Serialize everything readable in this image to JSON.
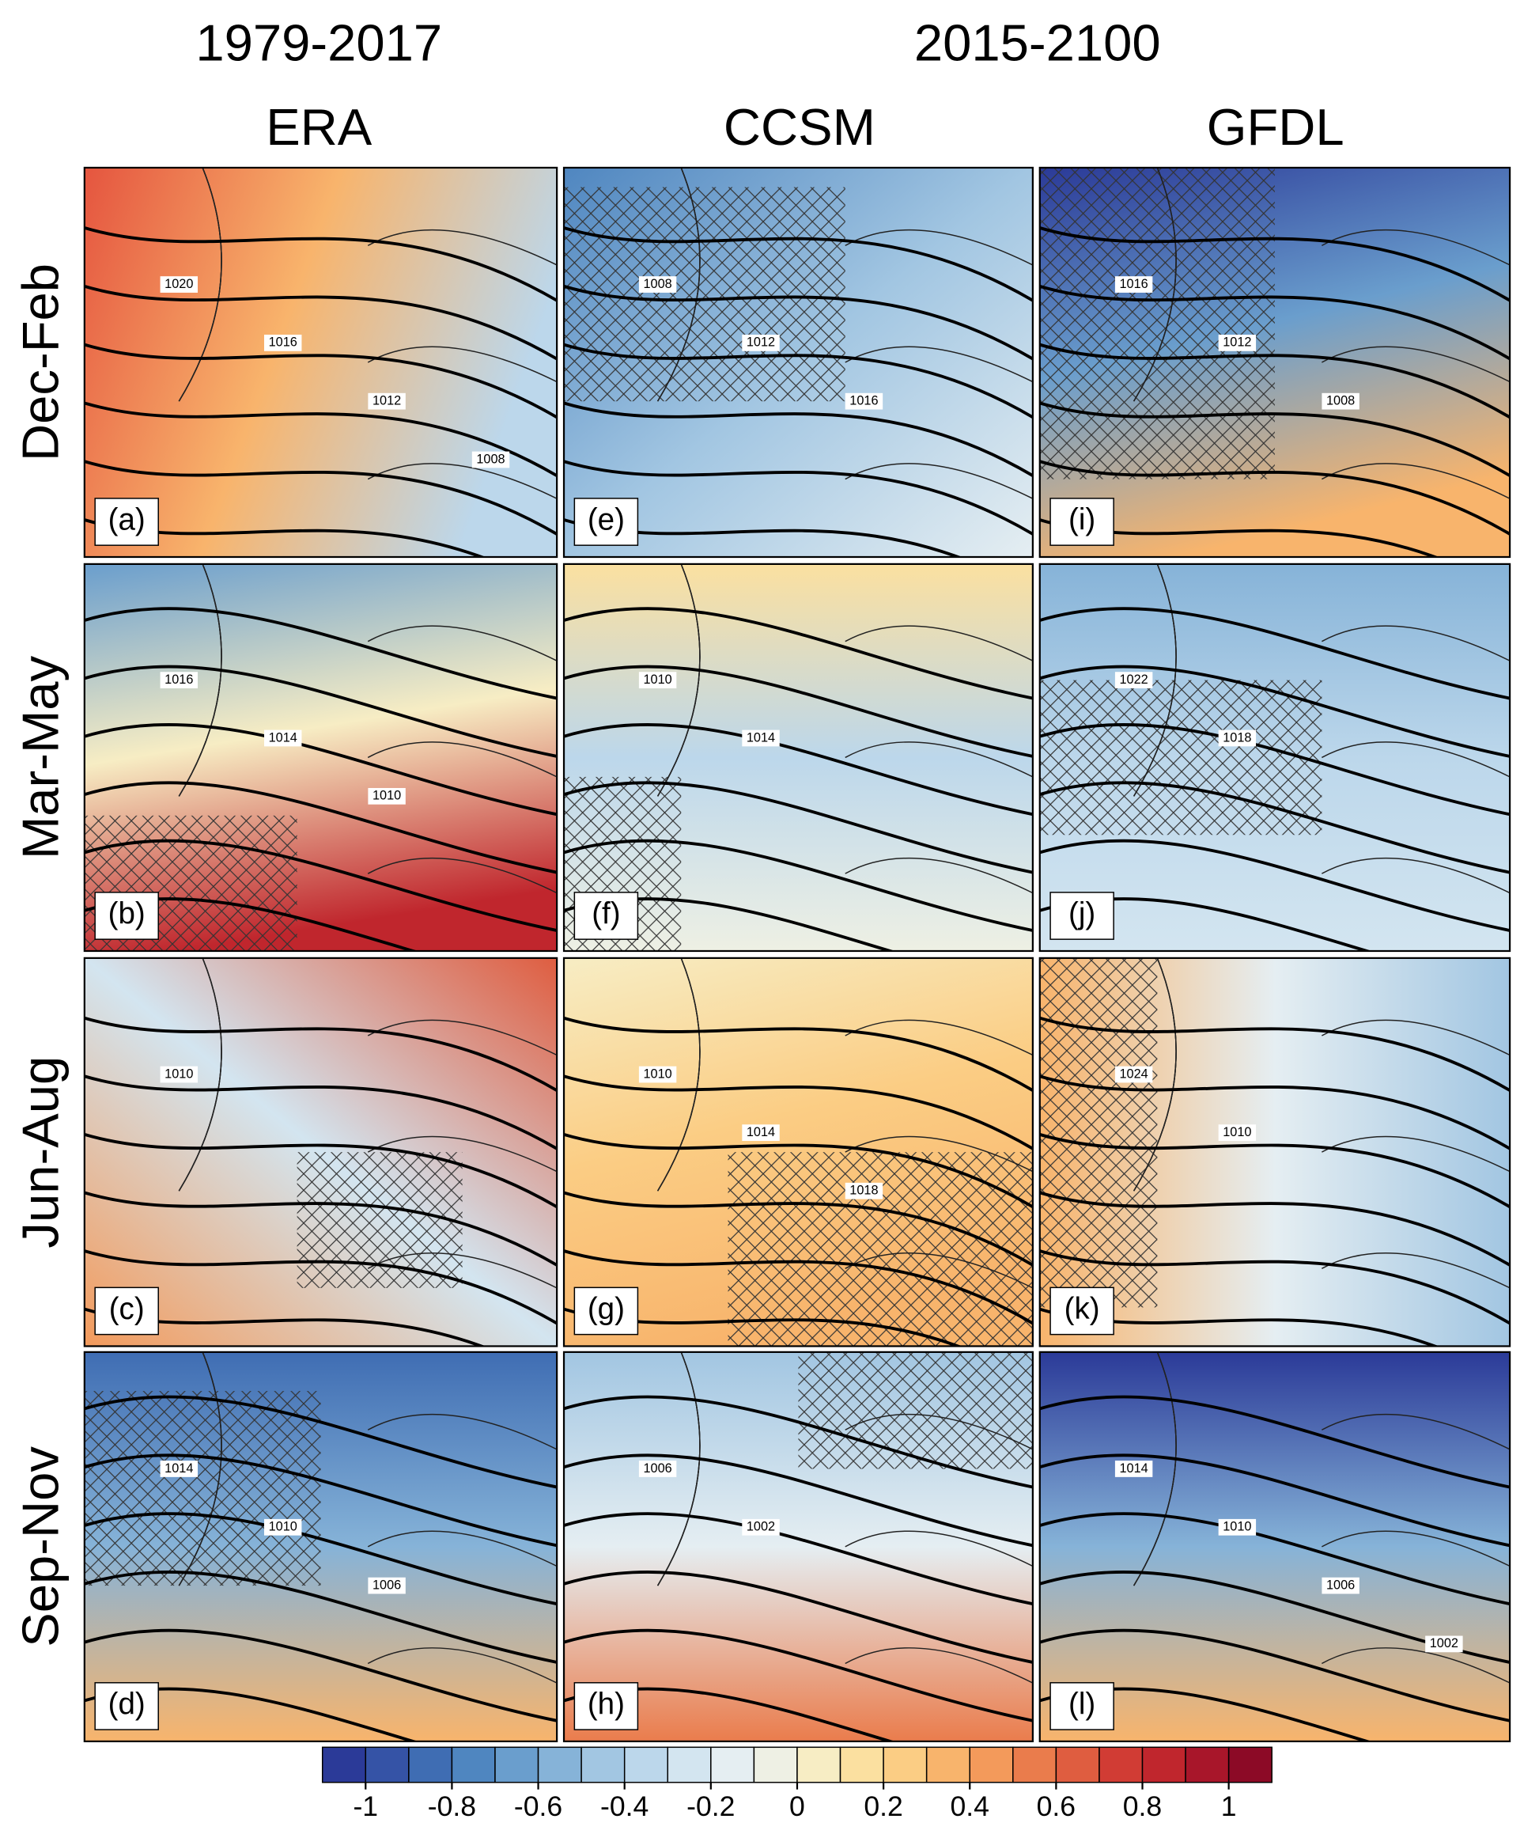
{
  "header": {
    "periods": [
      "1979-2017",
      "2015-2100"
    ],
    "models": [
      "ERA",
      "CCSM",
      "GFDL"
    ]
  },
  "rows": [
    "Dec-Feb",
    "Mar-May",
    "Jun-Aug",
    "Sep-Nov"
  ],
  "panels": [
    {
      "label": "(a)",
      "contour_labels": [
        "1020",
        "1016",
        "1012",
        "1008"
      ]
    },
    {
      "label": "(b)",
      "contour_labels": [
        "1016",
        "1014",
        "1010"
      ]
    },
    {
      "label": "(c)",
      "contour_labels": [
        "1010"
      ]
    },
    {
      "label": "(d)",
      "contour_labels": [
        "1014",
        "1010",
        "1006"
      ]
    },
    {
      "label": "(e)",
      "contour_labels": [
        "1008",
        "1012",
        "1016"
      ]
    },
    {
      "label": "(f)",
      "contour_labels": [
        "1010",
        "1014"
      ]
    },
    {
      "label": "(g)",
      "contour_labels": [
        "1010",
        "1014",
        "1018"
      ]
    },
    {
      "label": "(h)",
      "contour_labels": [
        "1006",
        "1002"
      ]
    },
    {
      "label": "(i)",
      "contour_labels": [
        "1016",
        "1012",
        "1008"
      ]
    },
    {
      "label": "(j)",
      "contour_labels": [
        "1022",
        "1018"
      ]
    },
    {
      "label": "(k)",
      "contour_labels": [
        "1024",
        "1010"
      ]
    },
    {
      "label": "(l)",
      "contour_labels": [
        "1014",
        "1010",
        "1006",
        "1002"
      ]
    }
  ],
  "colorbar": {
    "type": "colorbar",
    "lim": [
      -1.1,
      1.1
    ],
    "ticks": [
      -1,
      -0.8,
      -0.6,
      -0.4,
      -0.2,
      0,
      0.2,
      0.4,
      0.6,
      0.8,
      1
    ],
    "colors": [
      "#2b3a98",
      "#3553a6",
      "#3f6db3",
      "#4f86c0",
      "#6a9ecd",
      "#86b3d8",
      "#a2c6e2",
      "#bcd7eb",
      "#d3e5f0",
      "#e5eef2",
      "#eef0e4",
      "#f7edc4",
      "#fbe0a0",
      "#fbcd84",
      "#f8b46c",
      "#f39a5b",
      "#ea7c4c",
      "#df5d40",
      "#d13c34",
      "#c0262d",
      "#a8162a",
      "#8c0a26"
    ]
  }
}
